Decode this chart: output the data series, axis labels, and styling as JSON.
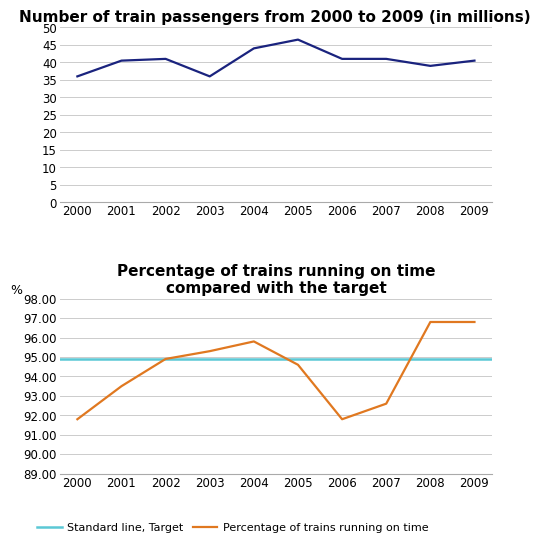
{
  "chart1": {
    "title": "Number of train passengers from 2000 to 2009 (in millions)",
    "years": [
      2000,
      2001,
      2002,
      2003,
      2004,
      2005,
      2006,
      2007,
      2008,
      2009
    ],
    "values": [
      36,
      40.5,
      41,
      36,
      44,
      46.5,
      41,
      41,
      39,
      40.5
    ],
    "line_color": "#1a237e",
    "ylim": [
      0,
      50
    ],
    "yticks": [
      0,
      5,
      10,
      15,
      20,
      25,
      30,
      35,
      40,
      45,
      50
    ],
    "title_fontsize": 11
  },
  "chart2": {
    "title": "Percentage of trains running on time\ncompared with the target",
    "years": [
      2000,
      2001,
      2002,
      2003,
      2004,
      2005,
      2006,
      2007,
      2008,
      2009
    ],
    "target_value": 94.9,
    "actual_values": [
      91.8,
      93.5,
      94.9,
      95.3,
      95.8,
      94.6,
      91.8,
      92.6,
      96.8,
      96.8
    ],
    "target_color": "#5bc8d5",
    "actual_color": "#e07820",
    "ylim": [
      89.0,
      98.0
    ],
    "yticks": [
      89.0,
      90.0,
      91.0,
      92.0,
      93.0,
      94.0,
      95.0,
      96.0,
      97.0,
      98.0
    ],
    "ylabel": "%",
    "title_fontsize": 11,
    "legend_target_label": "Standard line, Target",
    "legend_actual_label": "Percentage of trains running on time"
  },
  "background_color": "#ffffff",
  "grid_color": "#cccccc",
  "tick_label_fontsize": 8.5,
  "axis_label_fontsize": 9
}
